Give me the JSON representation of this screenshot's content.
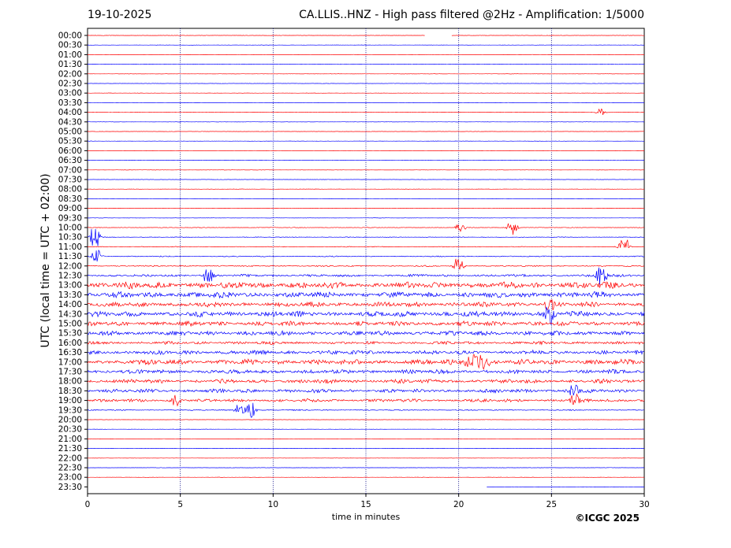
{
  "date": "19-10-2025",
  "title": "CA.LLIS..HNZ - High pass filtered @2Hz - Amplification: 1/5000",
  "copyright": "©ICGC 2025",
  "colors": {
    "red": "#ff0000",
    "blue": "#0000ff",
    "grid": "#000080"
  },
  "chart_data": {
    "type": "line",
    "subtype": "helicorder",
    "xlabel": "time in minutes",
    "ylabel": "UTC (local time = UTC + 02:00)",
    "xlim": [
      0,
      30
    ],
    "xticks": [
      "0",
      "5",
      "10",
      "15",
      "20",
      "25",
      "30"
    ],
    "vertical_gridlines_minutes": [
      5,
      10,
      15,
      20,
      25
    ],
    "row_labels": [
      "00:00",
      "00:30",
      "01:00",
      "01:30",
      "02:00",
      "02:30",
      "03:00",
      "03:30",
      "04:00",
      "04:30",
      "05:00",
      "05:30",
      "06:00",
      "06:30",
      "07:00",
      "07:30",
      "08:00",
      "08:30",
      "09:00",
      "09:30",
      "10:00",
      "10:30",
      "11:00",
      "11:30",
      "12:00",
      "12:30",
      "13:00",
      "13:30",
      "14:00",
      "14:30",
      "15:00",
      "15:30",
      "16:00",
      "16:30",
      "17:00",
      "17:30",
      "18:00",
      "18:30",
      "19:00",
      "19:30",
      "20:00",
      "20:30",
      "21:00",
      "21:30",
      "22:00",
      "22:30",
      "23:00",
      "23:30"
    ],
    "row_colors": [
      "red",
      "blue"
    ],
    "noise_level_by_row": [
      0.2,
      0.15,
      0.15,
      0.15,
      0.15,
      0.15,
      0.15,
      0.15,
      0.2,
      0.15,
      0.15,
      0.15,
      0.15,
      0.15,
      0.15,
      0.15,
      0.15,
      0.15,
      0.15,
      0.15,
      0.3,
      0.3,
      0.35,
      0.5,
      0.6,
      1.2,
      3.2,
      2.8,
      2.4,
      2.6,
      2.3,
      2.2,
      1.5,
      2.0,
      2.6,
      2.0,
      2.0,
      1.8,
      1.5,
      0.5,
      0.15,
      0.15,
      0.15,
      0.15,
      0.15,
      0.15,
      0.15,
      0.15
    ],
    "events": [
      {
        "row": "00:00",
        "minute": 18.2,
        "end_minute": 19.6,
        "kind": "data_gap"
      },
      {
        "row": "04:00",
        "minute": 27.7,
        "amplitude": 0.5
      },
      {
        "row": "10:00",
        "minute": 20.1,
        "amplitude": 0.6
      },
      {
        "row": "10:00",
        "minute": 22.9,
        "amplitude": 1.2
      },
      {
        "row": "10:30",
        "minute": 0.4,
        "amplitude": 1.6
      },
      {
        "row": "11:00",
        "minute": 28.9,
        "amplitude": 1.4
      },
      {
        "row": "11:30",
        "minute": 0.5,
        "amplitude": 1.0
      },
      {
        "row": "12:00",
        "minute": 20.0,
        "amplitude": 1.2
      },
      {
        "row": "12:30",
        "minute": 6.5,
        "amplitude": 1.0
      },
      {
        "row": "12:30",
        "minute": 27.7,
        "amplitude": 1.6
      },
      {
        "row": "14:00",
        "minute": 24.9,
        "amplitude": 1.0
      },
      {
        "row": "14:30",
        "minute": 24.9,
        "amplitude": 1.4
      },
      {
        "row": "17:00",
        "minute": 20.5,
        "end_minute": 21.5,
        "amplitude": 1.0
      },
      {
        "row": "18:30",
        "minute": 26.2,
        "amplitude": 0.8
      },
      {
        "row": "19:00",
        "minute": 4.7,
        "amplitude": 0.8
      },
      {
        "row": "19:00",
        "minute": 26.3,
        "amplitude": 1.0
      },
      {
        "row": "19:30",
        "minute": 8.2,
        "amplitude": 0.8
      },
      {
        "row": "19:30",
        "minute": 8.8,
        "amplitude": 1.2
      },
      {
        "row": "23:30",
        "end_minute": 21.5,
        "kind": "data_gap"
      }
    ]
  }
}
